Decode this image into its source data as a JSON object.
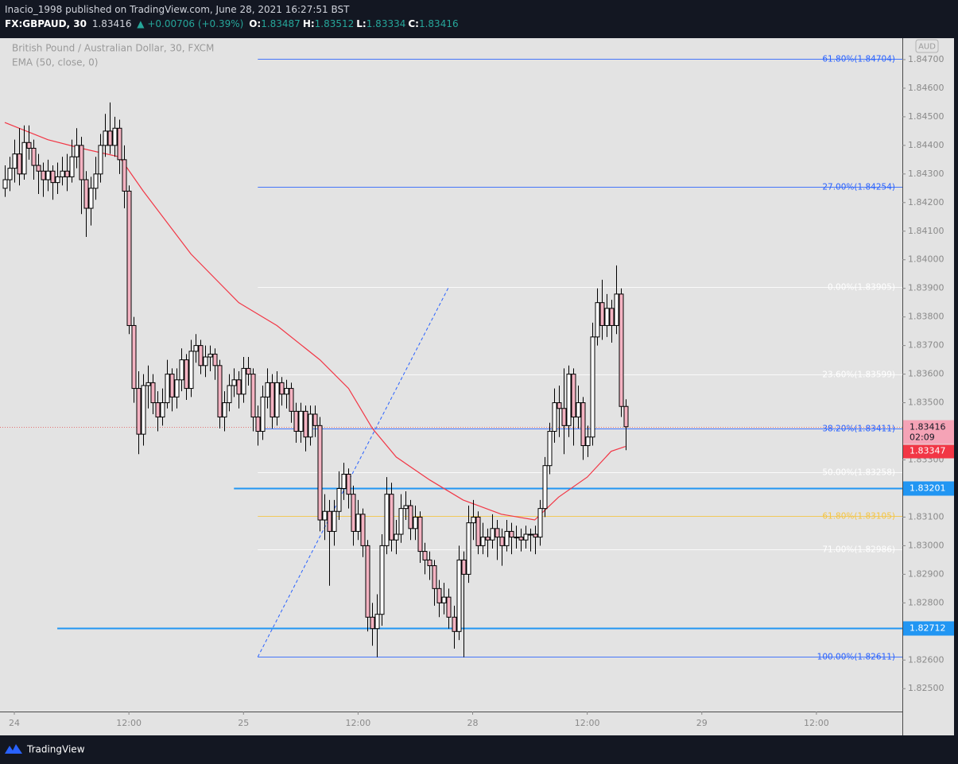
{
  "header": {
    "published": "Inacio_1998 published on TradingView.com, June 28, 2021 16:27:51 BST",
    "symbol": "FX:GBPAUD, 30",
    "last": "1.83416",
    "change": "▲ +0.00706 (+0.39%)",
    "ohlc": [
      {
        "label": "O:",
        "value": "1.83487"
      },
      {
        "label": "H:",
        "value": "1.83512"
      },
      {
        "label": "L:",
        "value": "1.83334"
      },
      {
        "label": "C:",
        "value": "1.83416"
      }
    ]
  },
  "footer": {
    "brand": "TradingView"
  },
  "chart_data": {
    "type": "candlestick",
    "title": "British Pound / Australian Dollar, 30, FXCM",
    "currency": "AUD",
    "up_color": "#ffffff",
    "down_color": "#f4b3c2",
    "wick_color": "#000000",
    "grid": false,
    "xlim": [
      -3,
      186
    ],
    "ylim": [
      1.8242,
      1.84775
    ],
    "xticks": [
      {
        "value": 0,
        "label": "24"
      },
      {
        "value": 24,
        "label": "12:00"
      },
      {
        "value": 48,
        "label": "25"
      },
      {
        "value": 72,
        "label": "12:00"
      },
      {
        "value": 96,
        "label": "28"
      },
      {
        "value": 120,
        "label": "12:00"
      },
      {
        "value": 144,
        "label": "29"
      },
      {
        "value": 168,
        "label": "12:00"
      }
    ],
    "yticks": [
      {
        "value": 1.847,
        "label": "1.84700"
      },
      {
        "value": 1.846,
        "label": "1.84600"
      },
      {
        "value": 1.845,
        "label": "1.84500"
      },
      {
        "value": 1.844,
        "label": "1.84400"
      },
      {
        "value": 1.843,
        "label": "1.84300"
      },
      {
        "value": 1.842,
        "label": "1.84200"
      },
      {
        "value": 1.841,
        "label": "1.84100"
      },
      {
        "value": 1.84,
        "label": "1.84000"
      },
      {
        "value": 1.839,
        "label": "1.83900"
      },
      {
        "value": 1.838,
        "label": "1.83800"
      },
      {
        "value": 1.837,
        "label": "1.83700"
      },
      {
        "value": 1.836,
        "label": "1.83600"
      },
      {
        "value": 1.835,
        "label": "1.83500"
      },
      {
        "value": 1.833,
        "label": "1.83300"
      },
      {
        "value": 1.831,
        "label": "1.83100"
      },
      {
        "value": 1.83,
        "label": "1.83000"
      },
      {
        "value": 1.829,
        "label": "1.82900"
      },
      {
        "value": 1.828,
        "label": "1.82800"
      },
      {
        "value": 1.826,
        "label": "1.82600"
      },
      {
        "value": 1.825,
        "label": "1.82500"
      }
    ],
    "x": [
      -2,
      -1,
      0,
      1,
      2,
      3,
      4,
      5,
      6,
      7,
      8,
      9,
      10,
      11,
      12,
      13,
      14,
      15,
      16,
      17,
      18,
      19,
      20,
      21,
      22,
      23,
      24,
      25,
      26,
      27,
      28,
      29,
      30,
      31,
      32,
      33,
      34,
      35,
      36,
      37,
      38,
      39,
      40,
      41,
      42,
      43,
      44,
      45,
      46,
      47,
      48,
      49,
      50,
      51,
      52,
      53,
      54,
      55,
      56,
      57,
      58,
      59,
      60,
      61,
      62,
      63,
      64,
      65,
      66,
      67,
      68,
      69,
      70,
      71,
      72,
      73,
      74,
      75,
      76,
      77,
      78,
      79,
      80,
      81,
      82,
      83,
      84,
      85,
      86,
      87,
      88,
      89,
      90,
      91,
      92,
      93,
      94,
      95,
      96,
      97,
      98,
      99,
      100,
      101,
      102,
      103,
      104,
      105,
      106,
      107,
      108,
      109,
      110,
      111,
      112,
      113,
      114,
      115,
      116,
      117,
      118,
      119,
      120,
      121,
      122,
      123,
      124,
      125,
      126,
      127,
      128
    ],
    "candles": [
      [
        1.8425,
        1.8433,
        1.8422,
        1.8428
      ],
      [
        1.8428,
        1.8436,
        1.8424,
        1.8432
      ],
      [
        1.8432,
        1.8442,
        1.8427,
        1.8437
      ],
      [
        1.8437,
        1.8446,
        1.8426,
        1.843
      ],
      [
        1.843,
        1.8447,
        1.8428,
        1.8441
      ],
      [
        1.8441,
        1.8447,
        1.8435,
        1.8439
      ],
      [
        1.8439,
        1.8442,
        1.8428,
        1.8433
      ],
      [
        1.8433,
        1.8437,
        1.8423,
        1.8431
      ],
      [
        1.8431,
        1.8434,
        1.8422,
        1.8428
      ],
      [
        1.8428,
        1.8435,
        1.8424,
        1.8431
      ],
      [
        1.8431,
        1.8433,
        1.8421,
        1.8427
      ],
      [
        1.8427,
        1.8434,
        1.8423,
        1.8429
      ],
      [
        1.8429,
        1.8436,
        1.8426,
        1.8431
      ],
      [
        1.8431,
        1.8437,
        1.8424,
        1.8429
      ],
      [
        1.8429,
        1.8442,
        1.8427,
        1.8436
      ],
      [
        1.8436,
        1.8446,
        1.8432,
        1.844
      ],
      [
        1.844,
        1.8443,
        1.8416,
        1.8428
      ],
      [
        1.8428,
        1.8431,
        1.8408,
        1.8418
      ],
      [
        1.8418,
        1.8429,
        1.8412,
        1.8425
      ],
      [
        1.8425,
        1.8436,
        1.8421,
        1.843
      ],
      [
        1.843,
        1.8444,
        1.8427,
        1.844
      ],
      [
        1.844,
        1.8451,
        1.8436,
        1.8445
      ],
      [
        1.8445,
        1.8455,
        1.8437,
        1.844
      ],
      [
        1.844,
        1.845,
        1.8436,
        1.8446
      ],
      [
        1.8446,
        1.8449,
        1.843,
        1.8435
      ],
      [
        1.8435,
        1.844,
        1.8418,
        1.8424
      ],
      [
        1.8424,
        1.8426,
        1.8374,
        1.8377
      ],
      [
        1.8377,
        1.838,
        1.835,
        1.8355
      ],
      [
        1.8355,
        1.8361,
        1.8332,
        1.8339
      ],
      [
        1.8339,
        1.836,
        1.8335,
        1.8356
      ],
      [
        1.8356,
        1.8363,
        1.8348,
        1.8357
      ],
      [
        1.8357,
        1.836,
        1.8346,
        1.835
      ],
      [
        1.835,
        1.8354,
        1.834,
        1.8345
      ],
      [
        1.8345,
        1.8355,
        1.8342,
        1.835
      ],
      [
        1.835,
        1.8365,
        1.8348,
        1.836
      ],
      [
        1.836,
        1.8362,
        1.8347,
        1.8352
      ],
      [
        1.8352,
        1.8362,
        1.8348,
        1.8358
      ],
      [
        1.8358,
        1.8369,
        1.8354,
        1.8365
      ],
      [
        1.8365,
        1.8367,
        1.8351,
        1.8355
      ],
      [
        1.8355,
        1.8372,
        1.8352,
        1.8368
      ],
      [
        1.8368,
        1.8374,
        1.8364,
        1.837
      ],
      [
        1.837,
        1.8372,
        1.836,
        1.8363
      ],
      [
        1.8363,
        1.837,
        1.8359,
        1.8366
      ],
      [
        1.8366,
        1.837,
        1.8361,
        1.8367
      ],
      [
        1.8367,
        1.8369,
        1.8358,
        1.8363
      ],
      [
        1.8363,
        1.8365,
        1.8341,
        1.8345
      ],
      [
        1.8345,
        1.8354,
        1.834,
        1.835
      ],
      [
        1.835,
        1.836,
        1.8347,
        1.8356
      ],
      [
        1.8356,
        1.8362,
        1.8352,
        1.8358
      ],
      [
        1.8358,
        1.8361,
        1.8348,
        1.8353
      ],
      [
        1.8353,
        1.8366,
        1.835,
        1.8362
      ],
      [
        1.8362,
        1.8366,
        1.8356,
        1.836
      ],
      [
        1.836,
        1.8362,
        1.834,
        1.8345
      ],
      [
        1.8345,
        1.8349,
        1.8335,
        1.834
      ],
      [
        1.834,
        1.8356,
        1.8337,
        1.8352
      ],
      [
        1.8352,
        1.8362,
        1.8348,
        1.8357
      ],
      [
        1.8357,
        1.836,
        1.8341,
        1.8345
      ],
      [
        1.8345,
        1.8361,
        1.8342,
        1.8357
      ],
      [
        1.8357,
        1.8359,
        1.8349,
        1.8353
      ],
      [
        1.8353,
        1.8358,
        1.8348,
        1.8355
      ],
      [
        1.8355,
        1.8357,
        1.8343,
        1.8347
      ],
      [
        1.8347,
        1.835,
        1.8336,
        1.834
      ],
      [
        1.834,
        1.835,
        1.8336,
        1.8347
      ],
      [
        1.8347,
        1.8349,
        1.8333,
        1.8338
      ],
      [
        1.8338,
        1.8349,
        1.8335,
        1.8346
      ],
      [
        1.8346,
        1.8349,
        1.8338,
        1.8342
      ],
      [
        1.8342,
        1.8345,
        1.8305,
        1.8309
      ],
      [
        1.8309,
        1.8318,
        1.8302,
        1.8312
      ],
      [
        1.8312,
        1.8316,
        1.8286,
        1.8305
      ],
      [
        1.8305,
        1.8316,
        1.83,
        1.8312
      ],
      [
        1.8312,
        1.8326,
        1.8309,
        1.832
      ],
      [
        1.832,
        1.8329,
        1.8316,
        1.8325
      ],
      [
        1.8325,
        1.8327,
        1.8313,
        1.8318
      ],
      [
        1.8318,
        1.8321,
        1.83,
        1.8305
      ],
      [
        1.8305,
        1.8316,
        1.8302,
        1.8311
      ],
      [
        1.8311,
        1.8313,
        1.8296,
        1.83
      ],
      [
        1.83,
        1.8302,
        1.827,
        1.8275
      ],
      [
        1.8275,
        1.828,
        1.8265,
        1.8271
      ],
      [
        1.8271,
        1.8283,
        1.8261,
        1.8276
      ],
      [
        1.8276,
        1.8304,
        1.8272,
        1.83
      ],
      [
        1.83,
        1.8324,
        1.8297,
        1.8318
      ],
      [
        1.8318,
        1.8322,
        1.8298,
        1.8302
      ],
      [
        1.8302,
        1.8309,
        1.8297,
        1.8304
      ],
      [
        1.8304,
        1.8318,
        1.8301,
        1.8313
      ],
      [
        1.8313,
        1.8319,
        1.8309,
        1.8314
      ],
      [
        1.8314,
        1.8316,
        1.8302,
        1.8306
      ],
      [
        1.8306,
        1.8314,
        1.8302,
        1.831
      ],
      [
        1.831,
        1.8312,
        1.8294,
        1.8298
      ],
      [
        1.8298,
        1.8301,
        1.829,
        1.8295
      ],
      [
        1.8295,
        1.8298,
        1.8288,
        1.8293
      ],
      [
        1.8293,
        1.8295,
        1.8279,
        1.8285
      ],
      [
        1.8285,
        1.8288,
        1.8275,
        1.828
      ],
      [
        1.828,
        1.8287,
        1.8276,
        1.8282
      ],
      [
        1.8282,
        1.8285,
        1.8271,
        1.8275
      ],
      [
        1.8275,
        1.8279,
        1.8264,
        1.827
      ],
      [
        1.827,
        1.83,
        1.8267,
        1.8295
      ],
      [
        1.8295,
        1.8298,
        1.8261,
        1.829
      ],
      [
        1.829,
        1.8314,
        1.8287,
        1.8308
      ],
      [
        1.8308,
        1.8316,
        1.8302,
        1.831
      ],
      [
        1.831,
        1.8312,
        1.8297,
        1.83
      ],
      [
        1.83,
        1.8308,
        1.8297,
        1.8303
      ],
      [
        1.8303,
        1.8306,
        1.8296,
        1.8302
      ],
      [
        1.8302,
        1.8311,
        1.8299,
        1.8306
      ],
      [
        1.8306,
        1.8309,
        1.8295,
        1.8303
      ],
      [
        1.8303,
        1.8306,
        1.8293,
        1.83
      ],
      [
        1.83,
        1.8309,
        1.8298,
        1.8305
      ],
      [
        1.8305,
        1.8308,
        1.8297,
        1.8303
      ],
      [
        1.8303,
        1.8307,
        1.8299,
        1.8303
      ],
      [
        1.8303,
        1.8306,
        1.8298,
        1.8302
      ],
      [
        1.8302,
        1.8307,
        1.8299,
        1.8304
      ],
      [
        1.8304,
        1.8306,
        1.8298,
        1.8304
      ],
      [
        1.8304,
        1.8307,
        1.8297,
        1.8303
      ],
      [
        1.8303,
        1.8316,
        1.83,
        1.8313
      ],
      [
        1.8313,
        1.8331,
        1.831,
        1.8328
      ],
      [
        1.8328,
        1.8343,
        1.8325,
        1.834
      ],
      [
        1.834,
        1.8355,
        1.8336,
        1.835
      ],
      [
        1.835,
        1.8356,
        1.8338,
        1.8348
      ],
      [
        1.8348,
        1.8362,
        1.8332,
        1.8342
      ],
      [
        1.8342,
        1.8363,
        1.8338,
        1.836
      ],
      [
        1.836,
        1.8362,
        1.8335,
        1.8345
      ],
      [
        1.8345,
        1.8356,
        1.8341,
        1.835
      ],
      [
        1.835,
        1.8352,
        1.833,
        1.8335
      ],
      [
        1.8335,
        1.8342,
        1.8331,
        1.8338
      ],
      [
        1.8338,
        1.8378,
        1.8335,
        1.8373
      ],
      [
        1.8373,
        1.839,
        1.837,
        1.8385
      ],
      [
        1.8385,
        1.8393,
        1.8372,
        1.8377
      ],
      [
        1.8377,
        1.8388,
        1.8373,
        1.8383
      ],
      [
        1.8383,
        1.8386,
        1.8371,
        1.8377
      ],
      [
        1.8377,
        1.8398,
        1.8374,
        1.8388
      ],
      [
        1.8388,
        1.839,
        1.8345,
        1.83487
      ],
      [
        1.83487,
        1.83512,
        1.83334,
        1.83416
      ]
    ],
    "last_price": {
      "value": 1.83416,
      "label": "1.83416",
      "countdown": "02:09",
      "color": "#f5a3b6"
    },
    "ema": {
      "name": "EMA (50, close, 0)",
      "color": "#f23645",
      "label": "1.83347",
      "x": [
        -2,
        7,
        14,
        22,
        27,
        37,
        47,
        55,
        64,
        70,
        75,
        80,
        87,
        94,
        102,
        109,
        114,
        120,
        125,
        128
      ],
      "values": [
        1.8448,
        1.8442,
        1.8439,
        1.8436,
        1.8424,
        1.8402,
        1.8385,
        1.8377,
        1.8365,
        1.8355,
        1.8341,
        1.8331,
        1.8323,
        1.8316,
        1.8311,
        1.8309,
        1.8317,
        1.8324,
        1.8333,
        1.83347
      ]
    },
    "hlines": [
      {
        "value": 1.83201,
        "label": "1.83201",
        "start": 46,
        "color": "#2196f3"
      },
      {
        "value": 1.82712,
        "label": "1.82712",
        "start": 9,
        "color": "#2196f3"
      }
    ],
    "trend_line": {
      "color": "#2962ff",
      "x": [
        51,
        91
      ],
      "values": [
        1.82611,
        1.83905
      ]
    },
    "fib": {
      "start": 51,
      "levels": [
        {
          "value": 1.84704,
          "label": "61.80%(1.84704)",
          "color": "#2962ff"
        },
        {
          "value": 1.84254,
          "label": "27.00%(1.84254)",
          "color": "#2962ff"
        },
        {
          "value": 1.83905,
          "label": "0.00%(1.83905)",
          "color": "#ffffff"
        },
        {
          "value": 1.83599,
          "label": "23.60%(1.83599)",
          "color": "#ffffff"
        },
        {
          "value": 1.83411,
          "label": "38.20%(1.83411)",
          "color": "#2962ff"
        },
        {
          "value": 1.83258,
          "label": "50.00%(1.83258)",
          "color": "#ffffff"
        },
        {
          "value": 1.83105,
          "label": "61.80%(1.83105)",
          "color": "#f5c542"
        },
        {
          "value": 1.82986,
          "label": "71.00%(1.82986)",
          "color": "#ffffff"
        },
        {
          "value": 1.82611,
          "label": "100.00%(1.82611)",
          "color": "#2962ff"
        }
      ]
    }
  }
}
